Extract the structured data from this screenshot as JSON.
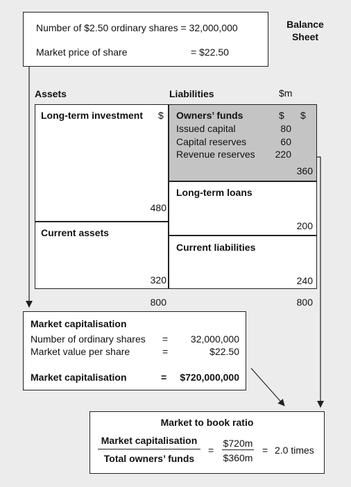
{
  "top_box": {
    "shares_label": "Number of $2.50 ordinary shares = 32,000,000",
    "price_label": "Market price of share",
    "price_value": "= $22.50"
  },
  "balance_sheet_label": [
    "Balance",
    "Sheet"
  ],
  "headers": {
    "assets": "Assets",
    "liabilities": "Liabilities",
    "unit": "$m"
  },
  "assets": {
    "long_term_investment": "Long-term investment",
    "lti_dollar": "$",
    "lti_value": "480",
    "current_assets": "Current assets",
    "ca_value": "320",
    "total": "800"
  },
  "liabilities": {
    "owners_funds": "Owners’ funds",
    "col1": "$",
    "col2": "$",
    "items": [
      {
        "label": "Issued capital",
        "value": "80"
      },
      {
        "label": "Capital reserves",
        "value": "60"
      },
      {
        "label": "Revenue reserves",
        "value": "220"
      }
    ],
    "owners_total": "360",
    "long_term_loans": "Long-term loans",
    "ltl_value": "200",
    "current_liabilities": "Current liabilities",
    "cl_value": "240",
    "total": "800"
  },
  "market_cap": {
    "title": "Market capitalisation",
    "rows": [
      {
        "label": "Number of ordinary shares",
        "eq": "=",
        "value": "32,000,000"
      },
      {
        "label": "Market value per share",
        "eq": "=",
        "value": "$22.50"
      }
    ],
    "result_label": "Market capitalisation",
    "result_eq": "=",
    "result_value": "$720,000,000"
  },
  "ratio": {
    "title": "Market to book ratio",
    "numerator": "Market capitalisation",
    "denominator": "Total owners’ funds",
    "eq1": "=",
    "value_num": "$720m",
    "value_den": "$360m",
    "eq2": "=",
    "result": "2.0 times"
  },
  "colors": {
    "shade": "#c4c4c4",
    "line": "#222222",
    "background": "#ececec"
  }
}
